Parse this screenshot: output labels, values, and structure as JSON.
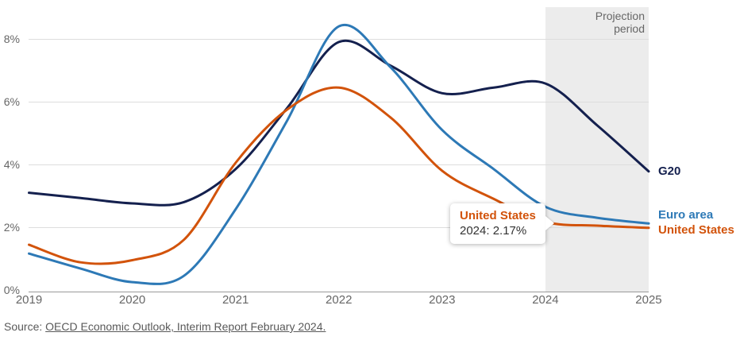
{
  "chart_data": {
    "type": "line",
    "title": "",
    "xlabel": "",
    "ylabel": "",
    "y_unit": "%",
    "xlim": [
      2019,
      2025
    ],
    "ylim": [
      0,
      9
    ],
    "grid": "horizontal",
    "legend_position": "right-inline",
    "x": [
      2019,
      2019.5,
      2020,
      2020.5,
      2021,
      2021.5,
      2022,
      2022.5,
      2023,
      2023.5,
      2024,
      2024.5,
      2025
    ],
    "x_tick_values": [
      2019,
      2020,
      2021,
      2022,
      2023,
      2024,
      2025
    ],
    "x_tick_labels": [
      "2019",
      "2020",
      "2021",
      "2022",
      "2023",
      "2024",
      "2025"
    ],
    "y_tick_values": [
      8,
      6,
      4,
      2,
      0
    ],
    "y_tick_labels": [
      "8%",
      "6%",
      "4%",
      "2%",
      "0%"
    ],
    "series": [
      {
        "id": "g20",
        "name": "G20",
        "color": "#14204e",
        "label_dy": 0,
        "values": [
          3.1,
          2.93,
          2.76,
          2.8,
          3.85,
          5.8,
          7.9,
          7.15,
          6.27,
          6.45,
          6.58,
          5.25,
          3.78
        ]
      },
      {
        "id": "euro-area",
        "name": "Euro area",
        "color": "#2d79b6",
        "label_dy": -10,
        "values": [
          1.16,
          0.68,
          0.25,
          0.45,
          2.57,
          5.4,
          8.4,
          7.1,
          5.1,
          3.85,
          2.65,
          2.3,
          2.12
        ]
      },
      {
        "id": "united-states",
        "name": "United States",
        "color": "#d2530b",
        "label_dy": 3,
        "values": [
          1.44,
          0.88,
          0.95,
          1.6,
          4.05,
          5.75,
          6.45,
          5.5,
          3.8,
          2.9,
          2.17,
          2.05,
          1.98
        ]
      }
    ],
    "projection_period": {
      "start": 2024,
      "end": 2025,
      "label": "Projection\nperiod"
    }
  },
  "tooltip": {
    "series": "United States",
    "color": "#d2530b",
    "value": "2024: 2.17%"
  },
  "source": {
    "prefix": "Source: ",
    "link_text": "OECD Economic Outlook, Interim Report February 2024."
  }
}
